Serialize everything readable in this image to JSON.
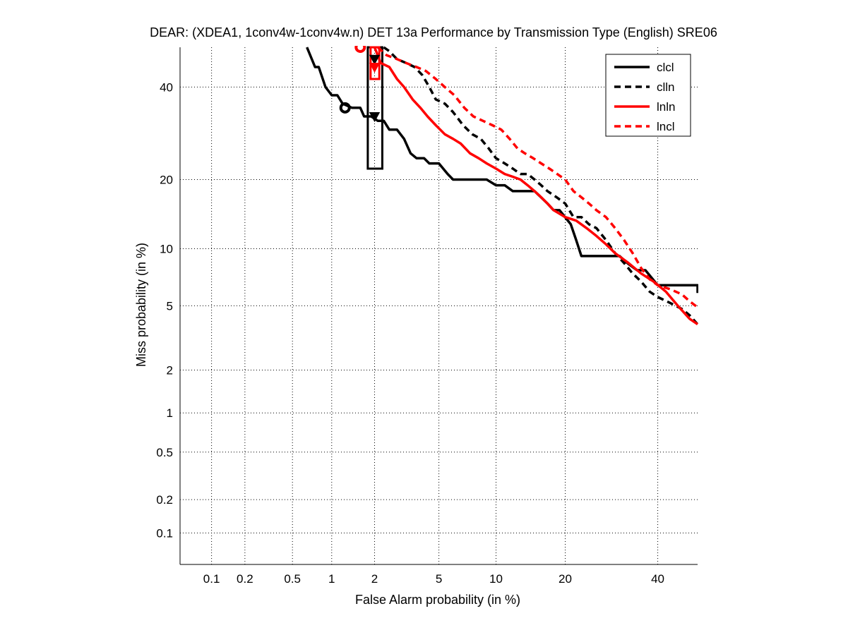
{
  "chart_data": {
    "type": "line",
    "title": "DEAR: (XDEA1, 1conv4w-1conv4w.n) DET 13a Performance by Transmission Type (English) SRE06",
    "xlabel": "False Alarm probability (in %)",
    "ylabel": "Miss probability (in %)",
    "x_scale": "normal-deviate",
    "y_scale": "normal-deviate",
    "xlim": [
      0.05,
      50
    ],
    "ylim": [
      0.05,
      50
    ],
    "x_ticks": [
      0.1,
      0.2,
      0.5,
      1,
      2,
      5,
      10,
      20,
      40
    ],
    "x_tick_labels": [
      "0.1",
      "0.2",
      "0.5",
      "1",
      "2",
      "5",
      "10",
      "20",
      "40"
    ],
    "y_ticks": [
      0.1,
      0.2,
      0.5,
      1,
      2,
      5,
      10,
      20,
      40
    ],
    "y_tick_labels": [
      "0.1",
      "0.2",
      "0.5",
      "1",
      "2",
      "5",
      "10",
      "20",
      "40"
    ],
    "grid": true,
    "legend_position": "top-right",
    "series": [
      {
        "name": "clcl",
        "color": "#000000",
        "dash": "solid",
        "points": [
          [
            0.65,
            50
          ],
          [
            0.75,
            45
          ],
          [
            0.8,
            45
          ],
          [
            0.9,
            40
          ],
          [
            1.0,
            38
          ],
          [
            1.1,
            38
          ],
          [
            1.2,
            36
          ],
          [
            1.4,
            35
          ],
          [
            1.6,
            35
          ],
          [
            1.7,
            33
          ],
          [
            1.9,
            33
          ],
          [
            2.1,
            32
          ],
          [
            2.3,
            32
          ],
          [
            2.5,
            30
          ],
          [
            2.8,
            30
          ],
          [
            3.1,
            28
          ],
          [
            3.4,
            25
          ],
          [
            3.7,
            24
          ],
          [
            4.1,
            24
          ],
          [
            4.4,
            23
          ],
          [
            5.0,
            23
          ],
          [
            5.6,
            21
          ],
          [
            6.0,
            20
          ],
          [
            7.0,
            20
          ],
          [
            8.0,
            20
          ],
          [
            9.0,
            20
          ],
          [
            10.0,
            19
          ],
          [
            11.0,
            19
          ],
          [
            12.0,
            18
          ],
          [
            13.0,
            18
          ],
          [
            15.0,
            18
          ],
          [
            17.0,
            16
          ],
          [
            18.0,
            15
          ],
          [
            19.0,
            15
          ],
          [
            21.0,
            13
          ],
          [
            22.0,
            11
          ],
          [
            23.0,
            9.2
          ],
          [
            26.0,
            9.2
          ],
          [
            28.0,
            9.2
          ],
          [
            31.0,
            9.2
          ],
          [
            33.0,
            8.4
          ],
          [
            35.0,
            7.8
          ],
          [
            37.0,
            7.8
          ],
          [
            40.0,
            6.5
          ],
          [
            44.0,
            6.5
          ],
          [
            47.0,
            6.5
          ],
          [
            50.0,
            6.5
          ],
          [
            50.0,
            5.9
          ]
        ]
      },
      {
        "name": "clln",
        "color": "#000000",
        "dash": "dashed",
        "points": [
          [
            2.3,
            50
          ],
          [
            2.5,
            49
          ],
          [
            2.8,
            47
          ],
          [
            3.2,
            46
          ],
          [
            3.6,
            45
          ],
          [
            4.0,
            43
          ],
          [
            4.4,
            40
          ],
          [
            4.8,
            37
          ],
          [
            5.4,
            36
          ],
          [
            6.0,
            34
          ],
          [
            6.8,
            31
          ],
          [
            7.6,
            29
          ],
          [
            8.4,
            28
          ],
          [
            9.2,
            26
          ],
          [
            10.0,
            24
          ],
          [
            11.0,
            23
          ],
          [
            12.0,
            22
          ],
          [
            13.0,
            21
          ],
          [
            14.0,
            21
          ],
          [
            15.0,
            20
          ],
          [
            16.0,
            19
          ],
          [
            17.0,
            18
          ],
          [
            18.5,
            17
          ],
          [
            20.0,
            16
          ],
          [
            21.5,
            14
          ],
          [
            23.0,
            14
          ],
          [
            24.5,
            13
          ],
          [
            26.0,
            12.5
          ],
          [
            28.0,
            11
          ],
          [
            30.0,
            9.5
          ],
          [
            32.0,
            8.5
          ],
          [
            34.0,
            7.5
          ],
          [
            36.0,
            6.8
          ],
          [
            38.0,
            6.0
          ],
          [
            40.0,
            5.6
          ],
          [
            43.0,
            5.2
          ],
          [
            46.0,
            4.8
          ],
          [
            48.0,
            4.4
          ],
          [
            50.0,
            3.9
          ]
        ]
      },
      {
        "name": "lnln",
        "color": "#ff0000",
        "dash": "solid",
        "points": [
          [
            2.0,
            50
          ],
          [
            2.2,
            46
          ],
          [
            2.5,
            45
          ],
          [
            2.8,
            42
          ],
          [
            3.1,
            40
          ],
          [
            3.5,
            37
          ],
          [
            3.9,
            35
          ],
          [
            4.3,
            33
          ],
          [
            4.8,
            31
          ],
          [
            5.4,
            29
          ],
          [
            6.0,
            28
          ],
          [
            6.6,
            27
          ],
          [
            7.4,
            25
          ],
          [
            8.2,
            24
          ],
          [
            9.0,
            23
          ],
          [
            10.0,
            22
          ],
          [
            11.0,
            21
          ],
          [
            12.0,
            20.5
          ],
          [
            13.0,
            20
          ],
          [
            14.0,
            19
          ],
          [
            15.0,
            18
          ],
          [
            16.0,
            17
          ],
          [
            17.0,
            16
          ],
          [
            18.0,
            15
          ],
          [
            20.0,
            14
          ],
          [
            22.0,
            13.5
          ],
          [
            24.0,
            12.5
          ],
          [
            26.0,
            11.5
          ],
          [
            28.0,
            10.5
          ],
          [
            30.0,
            9.5
          ],
          [
            33.0,
            8.5
          ],
          [
            36.0,
            7.5
          ],
          [
            39.0,
            6.8
          ],
          [
            42.0,
            6.0
          ],
          [
            45.0,
            5.0
          ],
          [
            48.0,
            4.2
          ],
          [
            50.0,
            3.9
          ]
        ]
      },
      {
        "name": "lncl",
        "color": "#ff0000",
        "dash": "dashed",
        "points": [
          [
            2.1,
            50
          ],
          [
            2.4,
            48
          ],
          [
            2.8,
            47
          ],
          [
            3.2,
            46
          ],
          [
            3.7,
            45
          ],
          [
            4.2,
            44
          ],
          [
            4.8,
            42
          ],
          [
            5.4,
            40
          ],
          [
            6.1,
            38
          ],
          [
            6.9,
            35
          ],
          [
            7.7,
            33
          ],
          [
            8.6,
            32
          ],
          [
            9.6,
            31
          ],
          [
            10.6,
            30
          ],
          [
            11.6,
            28
          ],
          [
            12.6,
            26
          ],
          [
            13.6,
            25
          ],
          [
            14.8,
            24
          ],
          [
            16.0,
            23
          ],
          [
            17.3,
            22
          ],
          [
            18.6,
            21
          ],
          [
            20.0,
            20
          ],
          [
            21.5,
            18
          ],
          [
            23.0,
            17
          ],
          [
            24.5,
            16
          ],
          [
            26.0,
            15
          ],
          [
            28.0,
            14
          ],
          [
            30.0,
            12.5
          ],
          [
            32.0,
            11
          ],
          [
            34.0,
            9.5
          ],
          [
            36.0,
            8
          ],
          [
            38.0,
            7
          ],
          [
            40.0,
            6.5
          ],
          [
            43.0,
            6.2
          ],
          [
            46.0,
            5.8
          ],
          [
            48.0,
            5.3
          ],
          [
            50.0,
            4.9
          ]
        ]
      }
    ],
    "markers": [
      {
        "series": "clcl",
        "shape": "circle",
        "x": 1.25,
        "y": 35
      },
      {
        "series": "clcl",
        "shape": "triangle-down",
        "x": 2.0,
        "y": 33
      },
      {
        "series": "clln",
        "shape": "triangle-down",
        "x": 2.0,
        "y": 47
      },
      {
        "series": "lnln",
        "shape": "circle",
        "x": 1.6,
        "y": 50
      },
      {
        "series": "lncl",
        "shape": "triangle-down",
        "x": 2.0,
        "y": 45
      }
    ],
    "confidence_boxes": [
      {
        "series": "clcl",
        "color": "#000000",
        "x_range": [
          1.8,
          2.25
        ],
        "y_range": [
          22,
          50
        ]
      },
      {
        "series": "lnln",
        "color": "#ff0000",
        "x_range": [
          1.88,
          2.15
        ],
        "y_range": [
          42,
          50
        ]
      }
    ]
  }
}
